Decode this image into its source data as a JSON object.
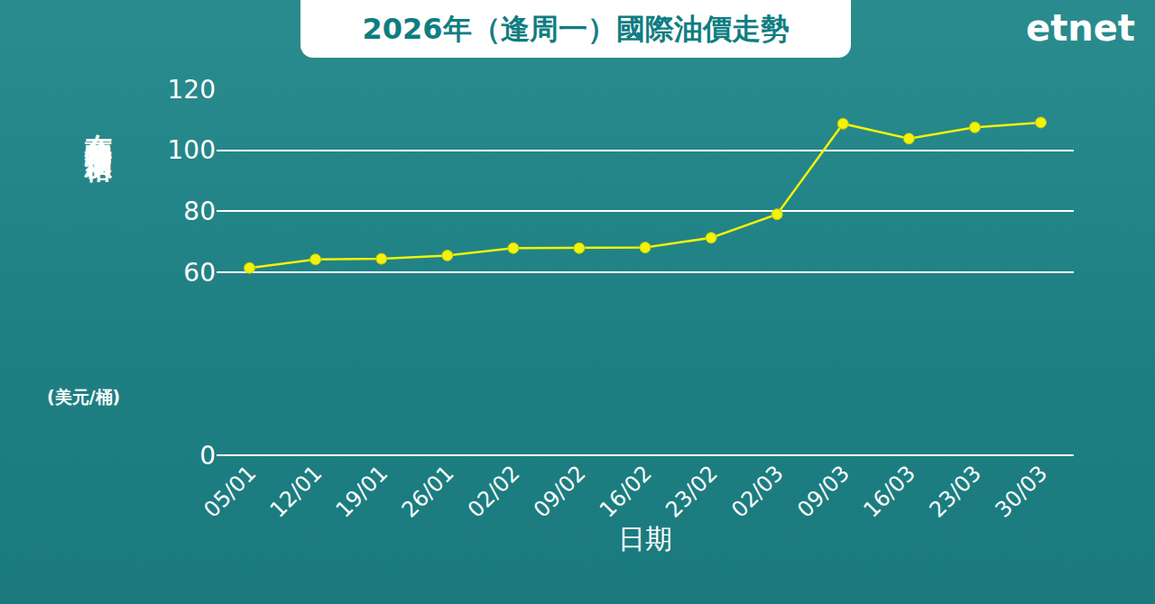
{
  "chart_data": {
    "type": "line",
    "title": "2026年（逢周一）國際油價走勢",
    "annotations": [
      "etnet"
    ],
    "ylabel": "布蘭特期油價格",
    "ylabel_unit": "(美元/桶)",
    "xlabel": "日期",
    "categories": [
      "05/01",
      "12/01",
      "19/01",
      "26/01",
      "02/02",
      "09/02",
      "16/02",
      "23/02",
      "02/03",
      "09/03",
      "16/03",
      "23/03",
      "30/03"
    ],
    "values": [
      61.4,
      64.2,
      64.4,
      65.5,
      67.9,
      67.9,
      68.1,
      71.3,
      79.0,
      108.7,
      103.8,
      107.5,
      109.1
    ],
    "color": "#f2f20a",
    "marker": "circle",
    "line_style": "solid",
    "ylim": [
      0,
      120
    ],
    "yticks": [
      0,
      60,
      80,
      100,
      120
    ],
    "grid": true
  }
}
